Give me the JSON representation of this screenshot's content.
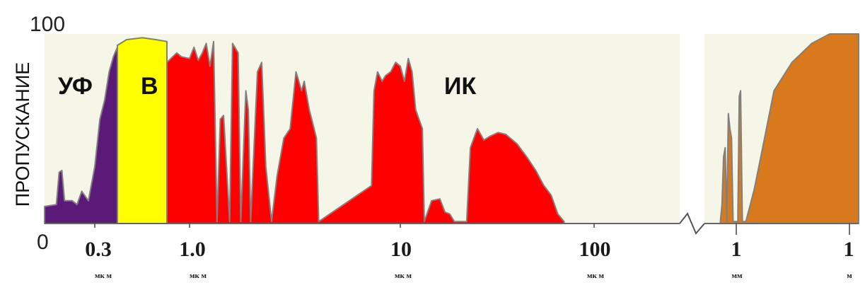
{
  "chart_data": {
    "type": "area",
    "title": "",
    "ylabel": "ПРОПУСКАНИЕ",
    "ymax_label": "100",
    "origin_label": "0",
    "ylim": [
      0,
      100
    ],
    "x_ticks": [
      {
        "label": "0.3",
        "unit": "мк м"
      },
      {
        "label": "1.0",
        "unit": "мк м"
      },
      {
        "label": "10",
        "unit": "мк м"
      },
      {
        "label": "100",
        "unit": "мк м"
      },
      {
        "label": "1",
        "unit": "мм"
      },
      {
        "label": "1",
        "unit": "м"
      }
    ],
    "bands": [
      {
        "label": "УФ",
        "color": "#5c1a78"
      },
      {
        "label": "В",
        "color": "#ffff00"
      },
      {
        "label": "ИК",
        "color": "#ff0000"
      },
      {
        "label": "",
        "color": "#d9791e"
      }
    ],
    "series": [
      {
        "band": "УФ",
        "unit_range": "0.2–0.4 мк м",
        "points": [
          [
            0.2,
            9
          ],
          [
            0.22,
            10
          ],
          [
            0.225,
            27
          ],
          [
            0.23,
            28
          ],
          [
            0.235,
            12
          ],
          [
            0.25,
            12
          ],
          [
            0.26,
            10
          ],
          [
            0.27,
            17
          ],
          [
            0.285,
            12
          ],
          [
            0.3,
            30
          ],
          [
            0.32,
            55
          ],
          [
            0.34,
            65
          ],
          [
            0.36,
            80
          ],
          [
            0.38,
            88
          ],
          [
            0.4,
            93
          ]
        ]
      },
      {
        "band": "В",
        "unit_range": "0.4–0.75 мк м",
        "points": [
          [
            0.4,
            94
          ],
          [
            0.45,
            97
          ],
          [
            0.55,
            98
          ],
          [
            0.65,
            97
          ],
          [
            0.75,
            96
          ]
        ]
      },
      {
        "band": "ИК",
        "unit_range": "0.75–100 мк м",
        "points": [
          [
            0.75,
            85
          ],
          [
            0.85,
            90
          ],
          [
            0.9,
            88
          ],
          [
            1.0,
            87
          ],
          [
            1.05,
            93
          ],
          [
            1.1,
            86
          ],
          [
            1.15,
            90
          ],
          [
            1.2,
            95
          ],
          [
            1.25,
            83
          ],
          [
            1.3,
            96
          ],
          [
            1.35,
            1
          ],
          [
            1.4,
            55
          ],
          [
            1.45,
            57
          ],
          [
            1.55,
            1
          ],
          [
            1.6,
            95
          ],
          [
            1.7,
            90
          ],
          [
            1.75,
            1
          ],
          [
            1.85,
            70
          ],
          [
            1.9,
            60
          ],
          [
            1.95,
            1
          ],
          [
            2.1,
            80
          ],
          [
            2.2,
            85
          ],
          [
            2.3,
            30
          ],
          [
            2.45,
            1
          ],
          [
            2.6,
            25
          ],
          [
            2.8,
            45
          ],
          [
            3.0,
            50
          ],
          [
            3.2,
            80
          ],
          [
            3.4,
            70
          ],
          [
            3.5,
            75
          ],
          [
            3.7,
            60
          ],
          [
            3.9,
            50
          ],
          [
            4.0,
            45
          ],
          [
            4.1,
            1
          ],
          [
            7.3,
            20
          ],
          [
            7.5,
            70
          ],
          [
            7.8,
            80
          ],
          [
            8.2,
            75
          ],
          [
            8.5,
            78
          ],
          [
            9.0,
            80
          ],
          [
            9.5,
            85
          ],
          [
            10.0,
            83
          ],
          [
            10.5,
            75
          ],
          [
            11.0,
            87
          ],
          [
            11.5,
            80
          ],
          [
            12.0,
            60
          ],
          [
            13.0,
            50
          ],
          [
            13.3,
            1
          ],
          [
            14.5,
            12
          ],
          [
            16.0,
            13
          ],
          [
            17.0,
            6
          ],
          [
            18.0,
            5
          ],
          [
            19.0,
            1
          ],
          [
            22.0,
            1
          ],
          [
            23.0,
            40
          ],
          [
            25.0,
            50
          ],
          [
            27.0,
            44
          ],
          [
            29.0,
            46
          ],
          [
            32.0,
            48
          ],
          [
            35.0,
            47
          ],
          [
            40.0,
            42
          ],
          [
            45.0,
            35
          ],
          [
            50.0,
            28
          ],
          [
            55.0,
            20
          ],
          [
            60.0,
            15
          ],
          [
            65.0,
            5
          ],
          [
            70.0,
            1
          ]
        ]
      },
      {
        "band": "",
        "unit_range": "0.5 мм – 1 м",
        "points": [
          [
            0.5,
            1
          ],
          [
            0.55,
            10
          ],
          [
            0.6,
            35
          ],
          [
            0.65,
            40
          ],
          [
            0.7,
            1
          ],
          [
            0.75,
            58
          ],
          [
            0.8,
            50
          ],
          [
            0.85,
            45
          ],
          [
            0.9,
            1
          ],
          [
            1.1,
            1
          ],
          [
            1.2,
            67
          ],
          [
            1.3,
            70
          ],
          [
            1.45,
            1
          ],
          [
            1.8,
            1
          ],
          [
            3,
            18
          ],
          [
            5,
            40
          ],
          [
            10,
            70
          ],
          [
            30,
            85
          ],
          [
            100,
            95
          ],
          [
            300,
            100
          ],
          [
            1000,
            100
          ]
        ]
      }
    ]
  }
}
